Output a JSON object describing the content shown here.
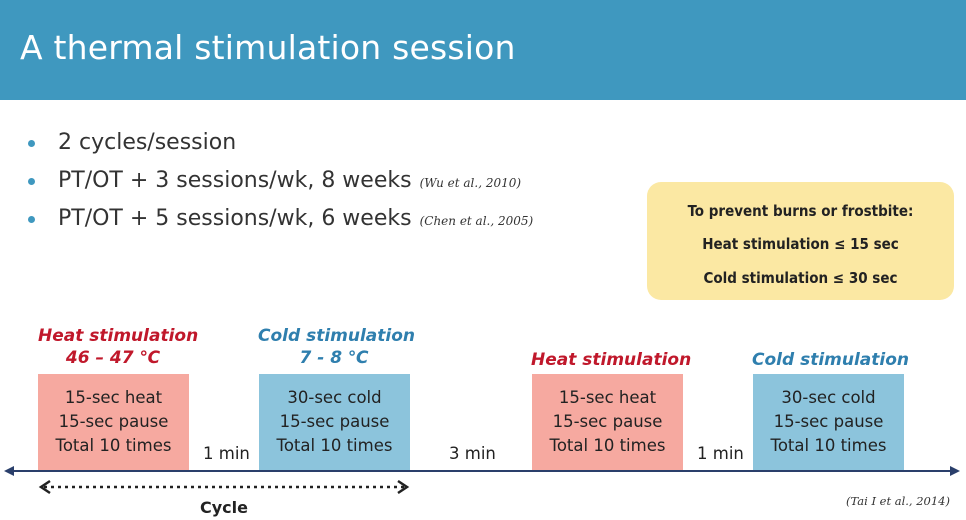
{
  "title": "A thermal stimulation session",
  "bullets": [
    {
      "text": "2 cycles/session",
      "cite": ""
    },
    {
      "text": "PT/OT + 3 sessions/wk, 8 weeks",
      "cite": "(Wu et al., 2010)"
    },
    {
      "text": "PT/OT + 5 sessions/wk, 6 weeks",
      "cite": "(Chen et al., 2005)"
    }
  ],
  "note": {
    "line1": "To prevent burns or frostbite:",
    "line2": "Heat stimulation ≤ 15 sec",
    "line3": "Cold stimulation ≤ 30 sec"
  },
  "stimulations": [
    {
      "label": "Heat stimulation",
      "temp": "46 – 47 ℃",
      "lines": [
        "15-sec heat",
        "15-sec pause",
        "Total 10 times"
      ]
    },
    {
      "label": "Cold stimulation",
      "temp": "7 - 8 ℃",
      "lines": [
        "30-sec cold",
        "15-sec pause",
        "Total 10 times"
      ]
    },
    {
      "label": "Heat stimulation",
      "temp": "",
      "lines": [
        "15-sec heat",
        "15-sec pause",
        "Total 10 times"
      ]
    },
    {
      "label": "Cold stimulation",
      "temp": "",
      "lines": [
        "30-sec cold",
        "15-sec pause",
        "Total 10 times"
      ]
    }
  ],
  "intervals": [
    "1 min",
    "3 min",
    "1 min"
  ],
  "cycle_label": "Cycle",
  "reference": "(Tai I et al., 2014)",
  "colors": {
    "header": "#3f98bf",
    "heat_text": "#c0182b",
    "cold_text": "#2f7fae",
    "heat_box": "#f6a9a0",
    "cold_box": "#8cc4dc",
    "note_bg": "#fbe8a3",
    "timeline": "#2a3f6b"
  }
}
